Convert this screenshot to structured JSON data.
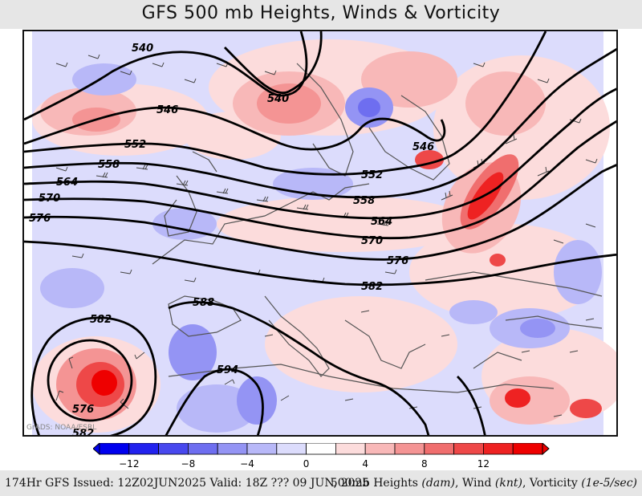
{
  "title": "GFS 500 mb Heights, Winds & Vorticity",
  "credit": "GrADS: NOAA/ESRL",
  "footer": {
    "left": "174Hr GFS Issued: 12Z02JUN2025 Valid: 18Z ??? 09 JUN, 2025",
    "r1": "500mb Heights ",
    "u1": "(dam)",
    "r2": ", Wind ",
    "u2": "(knt)",
    "r3": ", Vorticity ",
    "u3": "(1e-5/sec)"
  },
  "colorbar": {
    "ticks": [
      "−12",
      "−8",
      "−4",
      "0",
      "4",
      "8",
      "12"
    ],
    "colors": [
      "#0000ee",
      "#2222ee",
      "#4848ee",
      "#6e6ef0",
      "#9494f4",
      "#b8b8f8",
      "#dcdcfc",
      "#ffffff",
      "#fcdcdc",
      "#f8b8b8",
      "#f49494",
      "#f06e6e",
      "#ee4848",
      "#ee2222",
      "#ee0000"
    ]
  },
  "contour_labels": {
    "l540a": "540",
    "l540b": "540",
    "l546a": "546",
    "l546b": "546",
    "l552a": "552",
    "l552b": "552",
    "l558a": "558",
    "l558b": "558",
    "l564a": "564",
    "l564b": "564",
    "l570a": "570",
    "l570b": "570",
    "l576a": "576",
    "l576b": "576",
    "l576c": "576",
    "l582a": "582",
    "l582b": "582",
    "l582c": "582",
    "l588": "588",
    "l594": "594"
  }
}
